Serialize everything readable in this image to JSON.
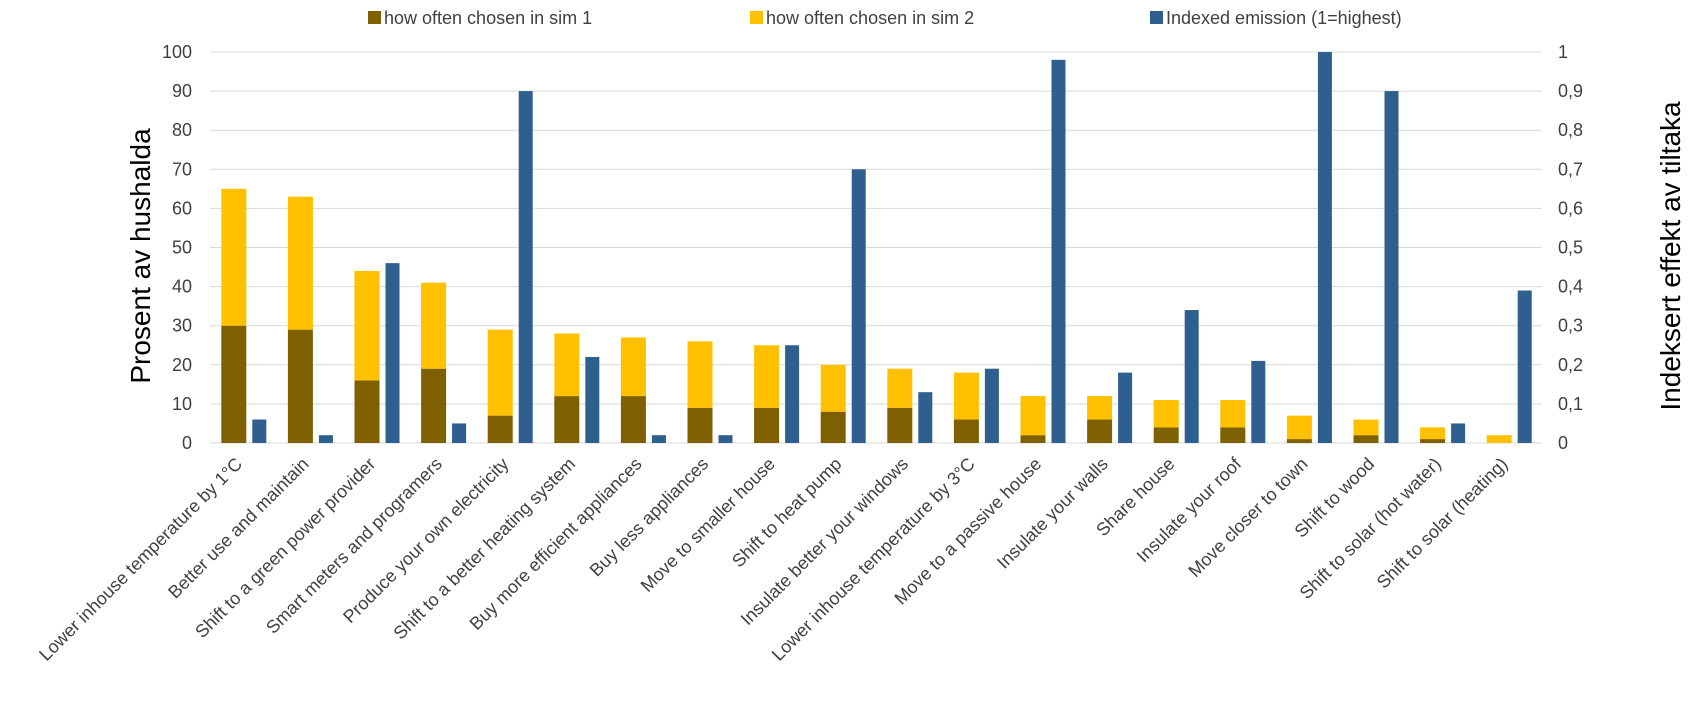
{
  "chart_data": {
    "type": "bar",
    "categories": [
      "Lower inhouse temperature by 1°C",
      "Better use and maintain",
      "Shift to a green power provider",
      "Smart meters and programers",
      "Produce your own electricity",
      "Shift to a better heating system",
      "Buy more efficient appliances",
      "Buy less appliances",
      "Move to smaller house",
      "Shift to heat pump",
      "Insulate better your windows",
      "Lower inhouse temperature by 3°C",
      "Move to a passive house",
      "Insulate your walls",
      "Share house",
      "Insulate your roof",
      "Move closer to town",
      "Shift to wood",
      "Shift to solar (hot water)",
      "Shift to solar (heating)"
    ],
    "series": [
      {
        "name": "how often chosen in sim 1",
        "axis": "left",
        "stack": "sims",
        "color": "#7f6000",
        "values": [
          30,
          29,
          16,
          19,
          7,
          12,
          12,
          9,
          9,
          8,
          9,
          6,
          2,
          6,
          4,
          4,
          1,
          2,
          1,
          0
        ]
      },
      {
        "name": "how often chosen in sim 2",
        "axis": "left",
        "stack": "sims",
        "color": "#ffc000",
        "values": [
          35,
          34,
          28,
          22,
          22,
          16,
          15,
          17,
          16,
          12,
          10,
          12,
          10,
          6,
          7,
          7,
          6,
          4,
          3,
          2
        ]
      },
      {
        "name": "Indexed emission (1=highest)",
        "axis": "right",
        "color": "#2f5f8f",
        "values": [
          0.06,
          0.02,
          0.46,
          0.05,
          0.9,
          0.22,
          0.02,
          0.02,
          0.25,
          0.7,
          0.13,
          0.19,
          0.98,
          0.18,
          0.34,
          0.21,
          1.0,
          0.9,
          0.05,
          0.39
        ]
      }
    ],
    "ylabel": "Prosent av hushalda",
    "ylabel_right": "Indeksert effekt av tiltaka",
    "ylim": [
      0,
      100
    ],
    "ylim_right": [
      0,
      1
    ],
    "y_ticks": [
      "0",
      "10",
      "20",
      "30",
      "40",
      "50",
      "60",
      "70",
      "80",
      "90",
      "100"
    ],
    "y_ticks_right": [
      "0",
      "0,1",
      "0,2",
      "0,3",
      "0,4",
      "0,5",
      "0,6",
      "0,7",
      "0,8",
      "0,9",
      "1"
    ],
    "grid": true,
    "legend_position": "top"
  }
}
